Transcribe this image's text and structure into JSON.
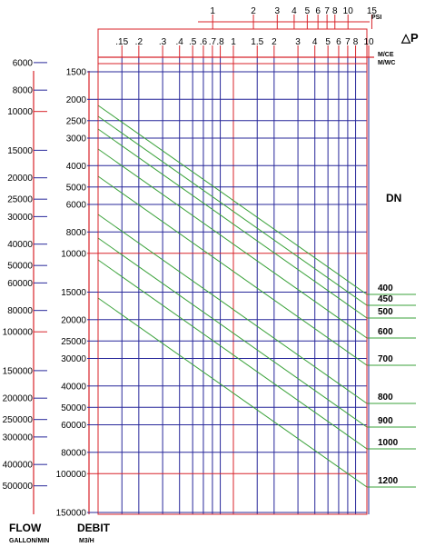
{
  "chart_data": {
    "type": "line",
    "delta_p_label": "△P",
    "psi": {
      "unit": "PSI",
      "ticks": [
        "1",
        "2",
        "3",
        "4",
        "5",
        "6",
        "7",
        "8",
        "10",
        "15"
      ],
      "values": [
        1,
        2,
        3,
        4,
        5,
        6,
        7,
        8,
        10,
        15
      ]
    },
    "mce": {
      "unit_1": "M/CE",
      "unit_2": "M/WC",
      "ticks": [
        ".15",
        ".2",
        ".3",
        ".4",
        ".5",
        ".6",
        ".7",
        ".8",
        "1",
        "1.5",
        "2",
        "3",
        "4",
        "5",
        "6",
        "7",
        "8",
        "10"
      ],
      "values": [
        0.15,
        0.2,
        0.3,
        0.4,
        0.5,
        0.6,
        0.7,
        0.8,
        1,
        1.5,
        2,
        3,
        4,
        5,
        6,
        7,
        8,
        10
      ],
      "range": [
        0.1,
        10
      ]
    },
    "gallon": {
      "title": "FLOW",
      "unit": "GALLON/MIN",
      "ticks": [
        "6000",
        "8000",
        "10000",
        "15000",
        "20000",
        "25000",
        "30000",
        "40000",
        "50000",
        "60000",
        "80000",
        "100000",
        "150000",
        "200000",
        "250000",
        "300000",
        "400000",
        "500000"
      ],
      "values": [
        6000,
        8000,
        10000,
        15000,
        20000,
        25000,
        30000,
        40000,
        50000,
        60000,
        80000,
        100000,
        150000,
        200000,
        250000,
        300000,
        400000,
        500000
      ]
    },
    "m3h": {
      "title": "DEBIT",
      "unit": "M3/H",
      "ticks": [
        "1500",
        "2000",
        "2500",
        "3000",
        "4000",
        "5000",
        "6000",
        "8000",
        "10000",
        "15000",
        "20000",
        "25000",
        "30000",
        "40000",
        "50000",
        "60000",
        "80000",
        "100000",
        "150000"
      ],
      "values": [
        1500,
        2000,
        2500,
        3000,
        4000,
        5000,
        6000,
        8000,
        10000,
        15000,
        20000,
        25000,
        30000,
        40000,
        50000,
        60000,
        80000,
        100000,
        150000
      ],
      "range": [
        1500,
        150000
      ]
    },
    "dn": {
      "title": "DN",
      "labels": [
        "400",
        "450",
        "500",
        "600",
        "700",
        "800",
        "900",
        "1000",
        "1200"
      ],
      "values": [
        400,
        450,
        500,
        600,
        700,
        800,
        900,
        1000,
        1200
      ]
    }
  }
}
